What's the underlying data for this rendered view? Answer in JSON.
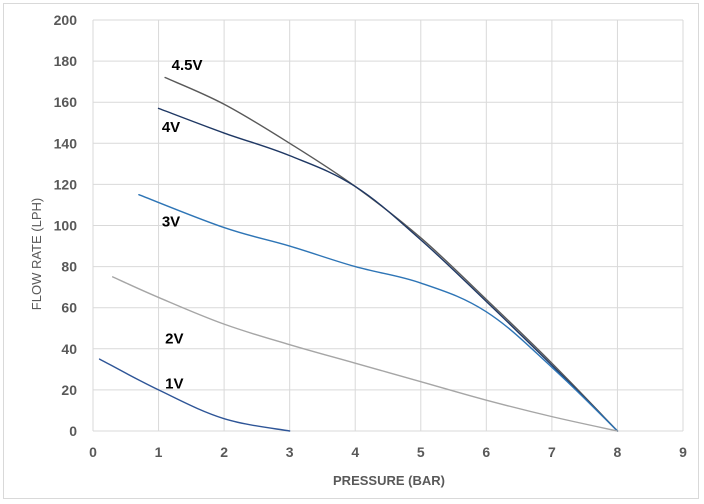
{
  "chart_data": {
    "type": "line",
    "title": "",
    "xlabel": "PRESSURE (BAR)",
    "ylabel": "FLOW RATE (LPH)",
    "xlim": [
      0,
      9
    ],
    "ylim": [
      0,
      200
    ],
    "xticks": [
      0,
      1,
      2,
      3,
      4,
      5,
      6,
      7,
      8,
      9
    ],
    "yticks": [
      0,
      20,
      40,
      60,
      80,
      100,
      120,
      140,
      160,
      180,
      200
    ],
    "grid": true,
    "legend": "none",
    "series": [
      {
        "name": "4.5V",
        "color": "#595959",
        "points": [
          [
            1.1,
            172
          ],
          [
            2,
            159
          ],
          [
            3,
            140
          ],
          [
            4,
            119
          ],
          [
            5,
            94
          ],
          [
            6,
            64
          ],
          [
            7,
            33
          ],
          [
            8,
            0
          ]
        ]
      },
      {
        "name": "4V",
        "color": "#1f3864",
        "points": [
          [
            1,
            157
          ],
          [
            2,
            145
          ],
          [
            3,
            134
          ],
          [
            4,
            119
          ],
          [
            5,
            93
          ],
          [
            6,
            63
          ],
          [
            7,
            32
          ],
          [
            8,
            0
          ]
        ]
      },
      {
        "name": "3V",
        "color": "#2e75b6",
        "points": [
          [
            0.7,
            115
          ],
          [
            2,
            99
          ],
          [
            3,
            90
          ],
          [
            4,
            80
          ],
          [
            5,
            72
          ],
          [
            6,
            58
          ],
          [
            7,
            31
          ],
          [
            8,
            0
          ]
        ]
      },
      {
        "name": "2V",
        "color": "#a6a6a6",
        "points": [
          [
            0.3,
            75
          ],
          [
            1,
            65
          ],
          [
            2,
            52
          ],
          [
            3,
            42
          ],
          [
            4,
            33
          ],
          [
            5,
            24
          ],
          [
            6,
            15
          ],
          [
            7,
            7
          ],
          [
            8,
            0
          ]
        ]
      },
      {
        "name": "1V",
        "color": "#2e5597",
        "points": [
          [
            0.1,
            35
          ],
          [
            1,
            20
          ],
          [
            2,
            6
          ],
          [
            3,
            0
          ]
        ]
      }
    ],
    "annotations": [
      {
        "text": "4.5V",
        "x": 1.2,
        "y": 178
      },
      {
        "text": "4V",
        "x": 1.05,
        "y": 148
      },
      {
        "text": "3V",
        "x": 1.05,
        "y": 102
      },
      {
        "text": "2V",
        "x": 1.1,
        "y": 45
      },
      {
        "text": "1V",
        "x": 1.1,
        "y": 23
      }
    ]
  }
}
